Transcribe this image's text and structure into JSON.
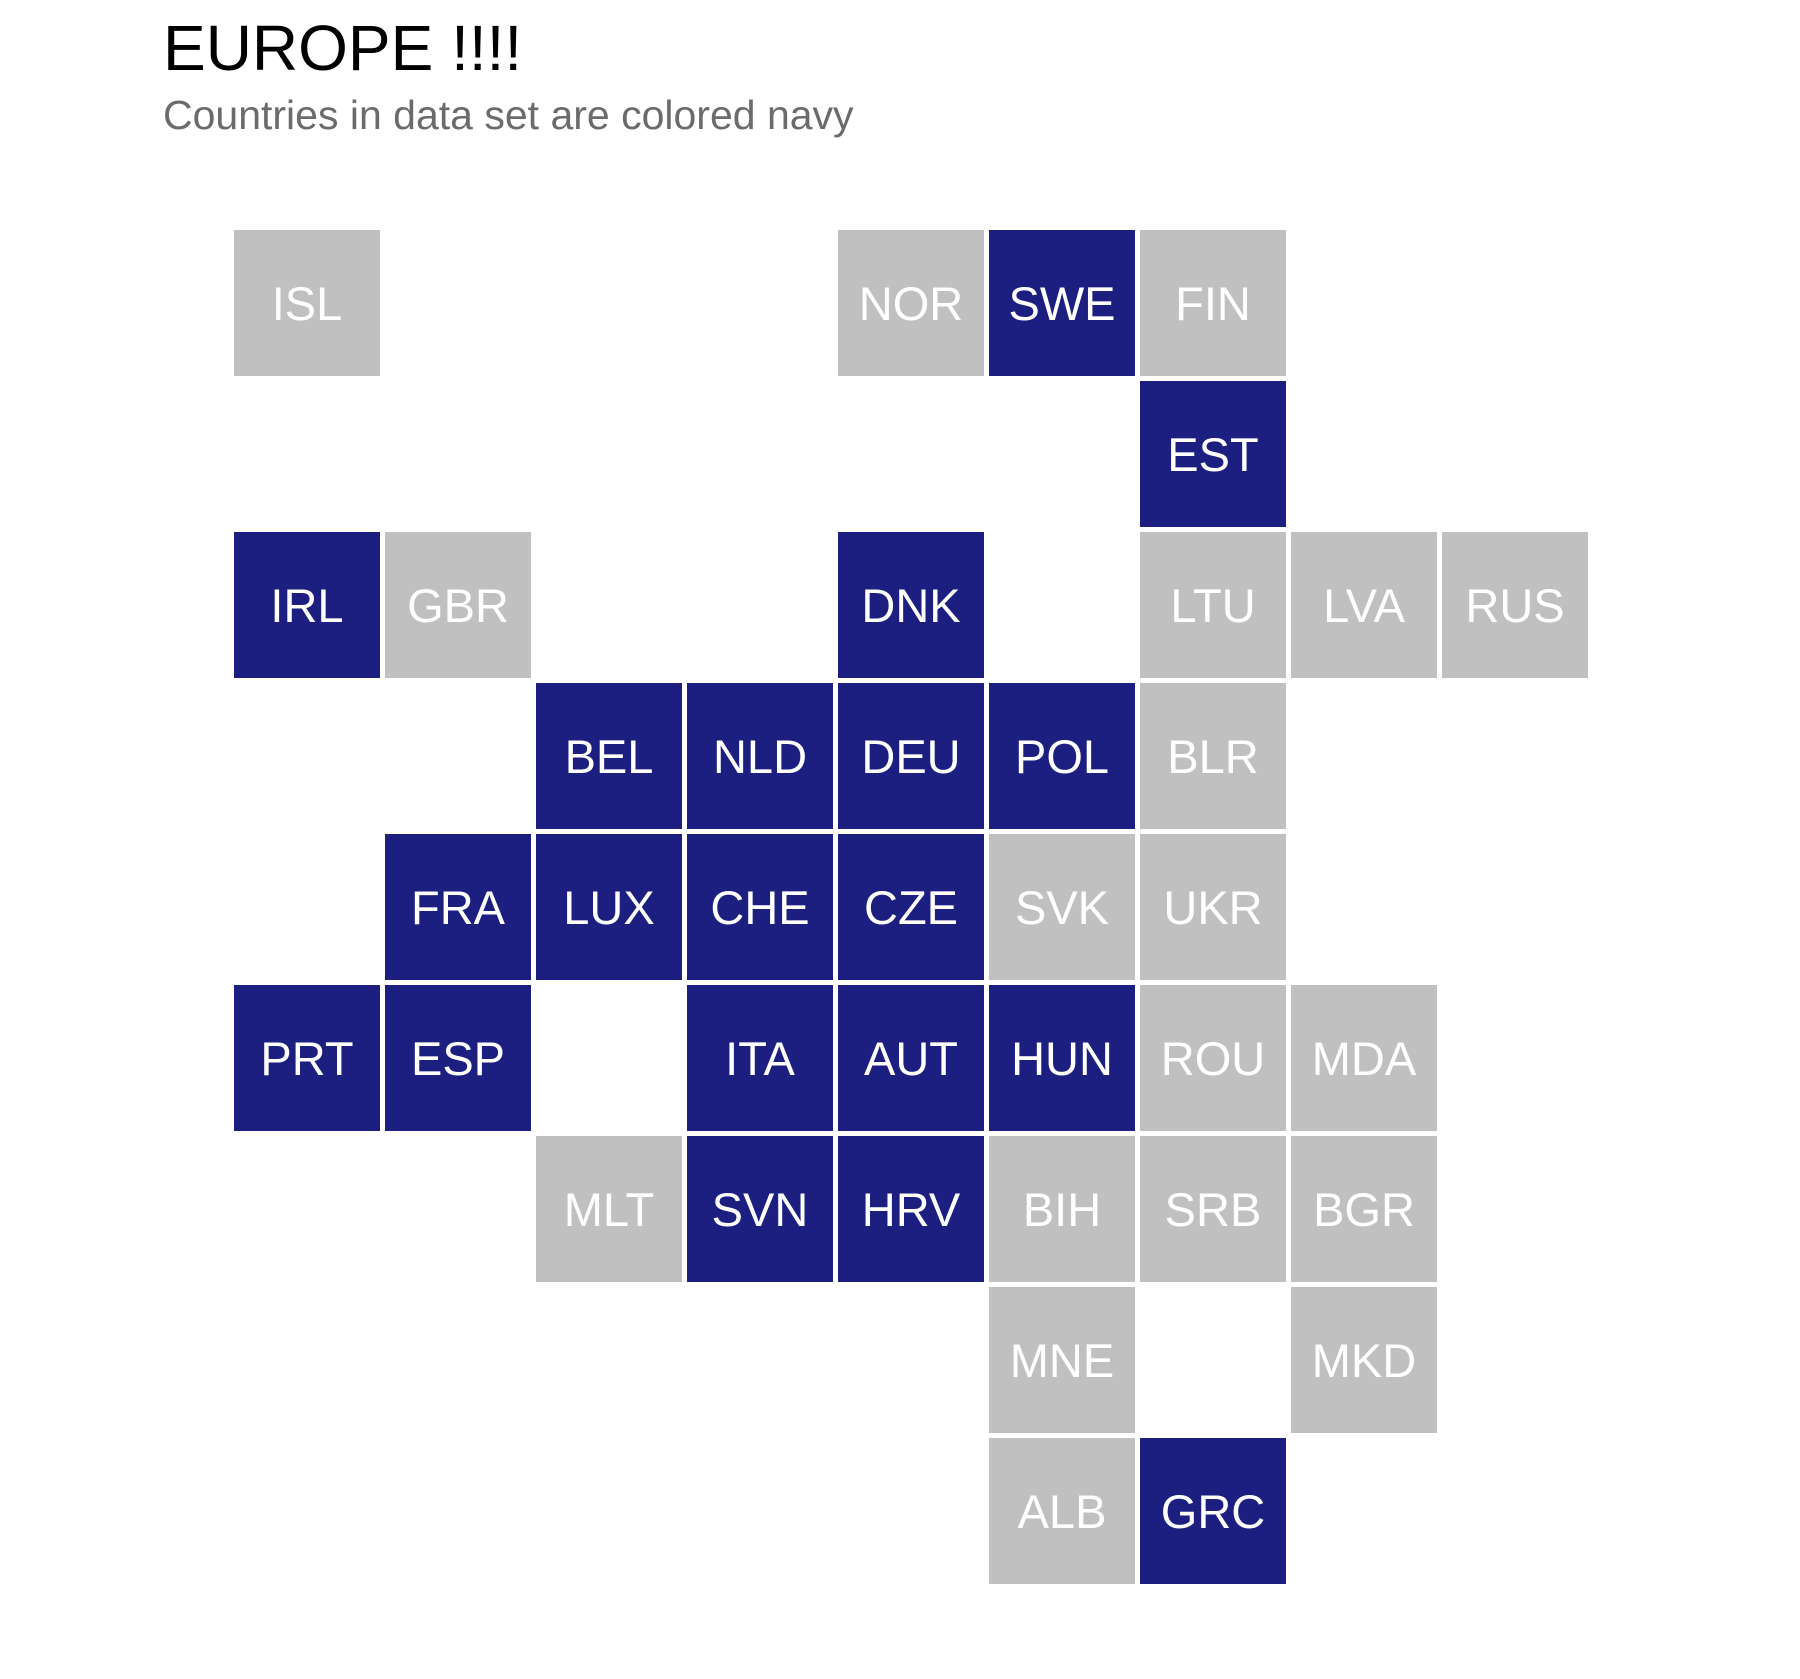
{
  "title": "EUROPE !!!!",
  "subtitle": "Countries in data set are colored navy",
  "colors": {
    "in_data": "#1c1f7f",
    "not_in_data": "#c0c0c0",
    "label": "#ffffff"
  },
  "tiles": [
    {
      "code": "ISL",
      "row": 1,
      "col": 1,
      "in_data": false
    },
    {
      "code": "NOR",
      "row": 1,
      "col": 5,
      "in_data": false
    },
    {
      "code": "SWE",
      "row": 1,
      "col": 6,
      "in_data": true
    },
    {
      "code": "FIN",
      "row": 1,
      "col": 7,
      "in_data": false
    },
    {
      "code": "EST",
      "row": 2,
      "col": 7,
      "in_data": true
    },
    {
      "code": "IRL",
      "row": 3,
      "col": 1,
      "in_data": true
    },
    {
      "code": "GBR",
      "row": 3,
      "col": 2,
      "in_data": false
    },
    {
      "code": "DNK",
      "row": 3,
      "col": 5,
      "in_data": true
    },
    {
      "code": "LTU",
      "row": 3,
      "col": 7,
      "in_data": false
    },
    {
      "code": "LVA",
      "row": 3,
      "col": 8,
      "in_data": false
    },
    {
      "code": "RUS",
      "row": 3,
      "col": 9,
      "in_data": false
    },
    {
      "code": "BEL",
      "row": 4,
      "col": 3,
      "in_data": true
    },
    {
      "code": "NLD",
      "row": 4,
      "col": 4,
      "in_data": true
    },
    {
      "code": "DEU",
      "row": 4,
      "col": 5,
      "in_data": true
    },
    {
      "code": "POL",
      "row": 4,
      "col": 6,
      "in_data": true
    },
    {
      "code": "BLR",
      "row": 4,
      "col": 7,
      "in_data": false
    },
    {
      "code": "FRA",
      "row": 5,
      "col": 2,
      "in_data": true
    },
    {
      "code": "LUX",
      "row": 5,
      "col": 3,
      "in_data": true
    },
    {
      "code": "CHE",
      "row": 5,
      "col": 4,
      "in_data": true
    },
    {
      "code": "CZE",
      "row": 5,
      "col": 5,
      "in_data": true
    },
    {
      "code": "SVK",
      "row": 5,
      "col": 6,
      "in_data": false
    },
    {
      "code": "UKR",
      "row": 5,
      "col": 7,
      "in_data": false
    },
    {
      "code": "PRT",
      "row": 6,
      "col": 1,
      "in_data": true
    },
    {
      "code": "ESP",
      "row": 6,
      "col": 2,
      "in_data": true
    },
    {
      "code": "ITA",
      "row": 6,
      "col": 4,
      "in_data": true
    },
    {
      "code": "AUT",
      "row": 6,
      "col": 5,
      "in_data": true
    },
    {
      "code": "HUN",
      "row": 6,
      "col": 6,
      "in_data": true
    },
    {
      "code": "ROU",
      "row": 6,
      "col": 7,
      "in_data": false
    },
    {
      "code": "MDA",
      "row": 6,
      "col": 8,
      "in_data": false
    },
    {
      "code": "MLT",
      "row": 7,
      "col": 3,
      "in_data": false
    },
    {
      "code": "SVN",
      "row": 7,
      "col": 4,
      "in_data": true
    },
    {
      "code": "HRV",
      "row": 7,
      "col": 5,
      "in_data": true
    },
    {
      "code": "BIH",
      "row": 7,
      "col": 6,
      "in_data": false
    },
    {
      "code": "SRB",
      "row": 7,
      "col": 7,
      "in_data": false
    },
    {
      "code": "BGR",
      "row": 7,
      "col": 8,
      "in_data": false
    },
    {
      "code": "MNE",
      "row": 8,
      "col": 6,
      "in_data": false
    },
    {
      "code": "MKD",
      "row": 8,
      "col": 8,
      "in_data": false
    },
    {
      "code": "ALB",
      "row": 9,
      "col": 6,
      "in_data": false
    },
    {
      "code": "GRC",
      "row": 9,
      "col": 7,
      "in_data": true
    }
  ]
}
